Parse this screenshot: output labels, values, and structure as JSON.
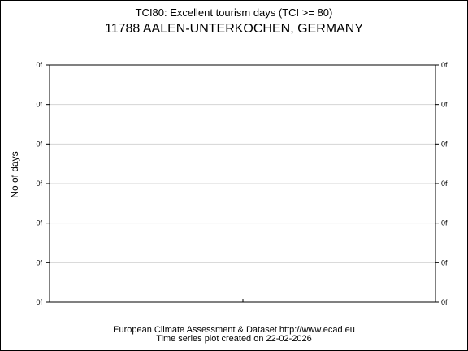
{
  "chart_data": {
    "type": "line",
    "title": "TCI80: Excellent tourism days (TCI >= 80)",
    "subtitle": "11788 AALEN-UNTERKOCHEN, GERMANY",
    "xlabel": "",
    "ylabel": "No of days",
    "y_tick_labels": [
      "0f",
      "0f",
      "0f",
      "0f",
      "0f",
      "0f",
      "0f"
    ],
    "grid": true,
    "series": []
  },
  "footer": {
    "line1": "European Climate Assessment & Dataset  http://www.ecad.eu",
    "line2": "Time series plot created on 22-02-2026"
  }
}
